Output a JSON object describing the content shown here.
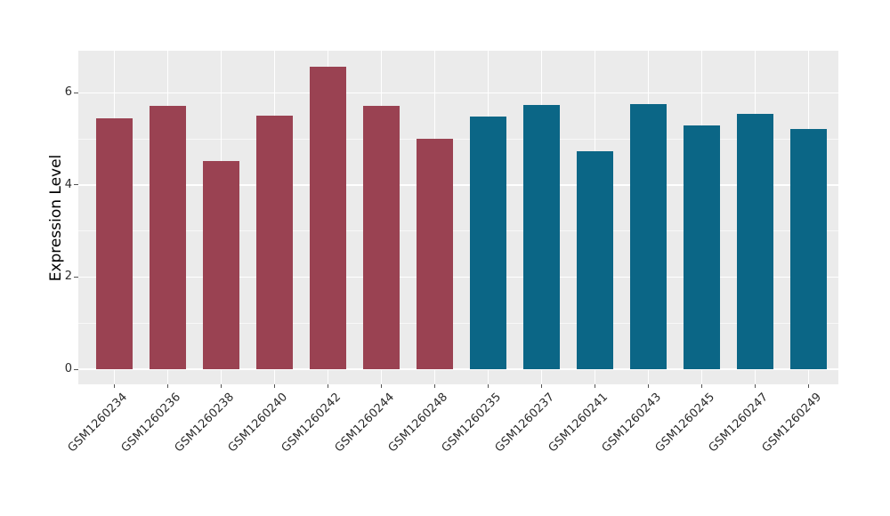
{
  "chart_data": {
    "type": "bar",
    "title": "",
    "xlabel": "",
    "ylabel": "Expression Level",
    "categories": [
      "GSM1260234",
      "GSM1260236",
      "GSM1260238",
      "GSM1260240",
      "GSM1260242",
      "GSM1260244",
      "GSM1260248",
      "GSM1260235",
      "GSM1260237",
      "GSM1260241",
      "GSM1260243",
      "GSM1260245",
      "GSM1260247",
      "GSM1260249"
    ],
    "values": [
      5.44,
      5.72,
      4.51,
      5.51,
      6.56,
      5.72,
      5.01,
      5.48,
      5.73,
      4.74,
      5.76,
      5.29,
      5.55,
      5.21
    ],
    "groups": [
      "A",
      "A",
      "A",
      "A",
      "A",
      "A",
      "A",
      "B",
      "B",
      "B",
      "B",
      "B",
      "B",
      "B"
    ],
    "group_colors": {
      "A": "#9A4252",
      "B": "#0B6686"
    },
    "yticks_major": [
      0,
      2,
      4,
      6
    ],
    "ytick_labels": [
      "0",
      "2",
      "4",
      "6"
    ],
    "yticks_minor": [
      1,
      3,
      5
    ],
    "ylim": [
      -0.33,
      6.9
    ],
    "grid": true,
    "legend": false,
    "plot_bg": "#EBEBEB",
    "grid_color": "#FFFFFF",
    "tick_color": "#555555",
    "x_label_rotation_deg": 45
  }
}
